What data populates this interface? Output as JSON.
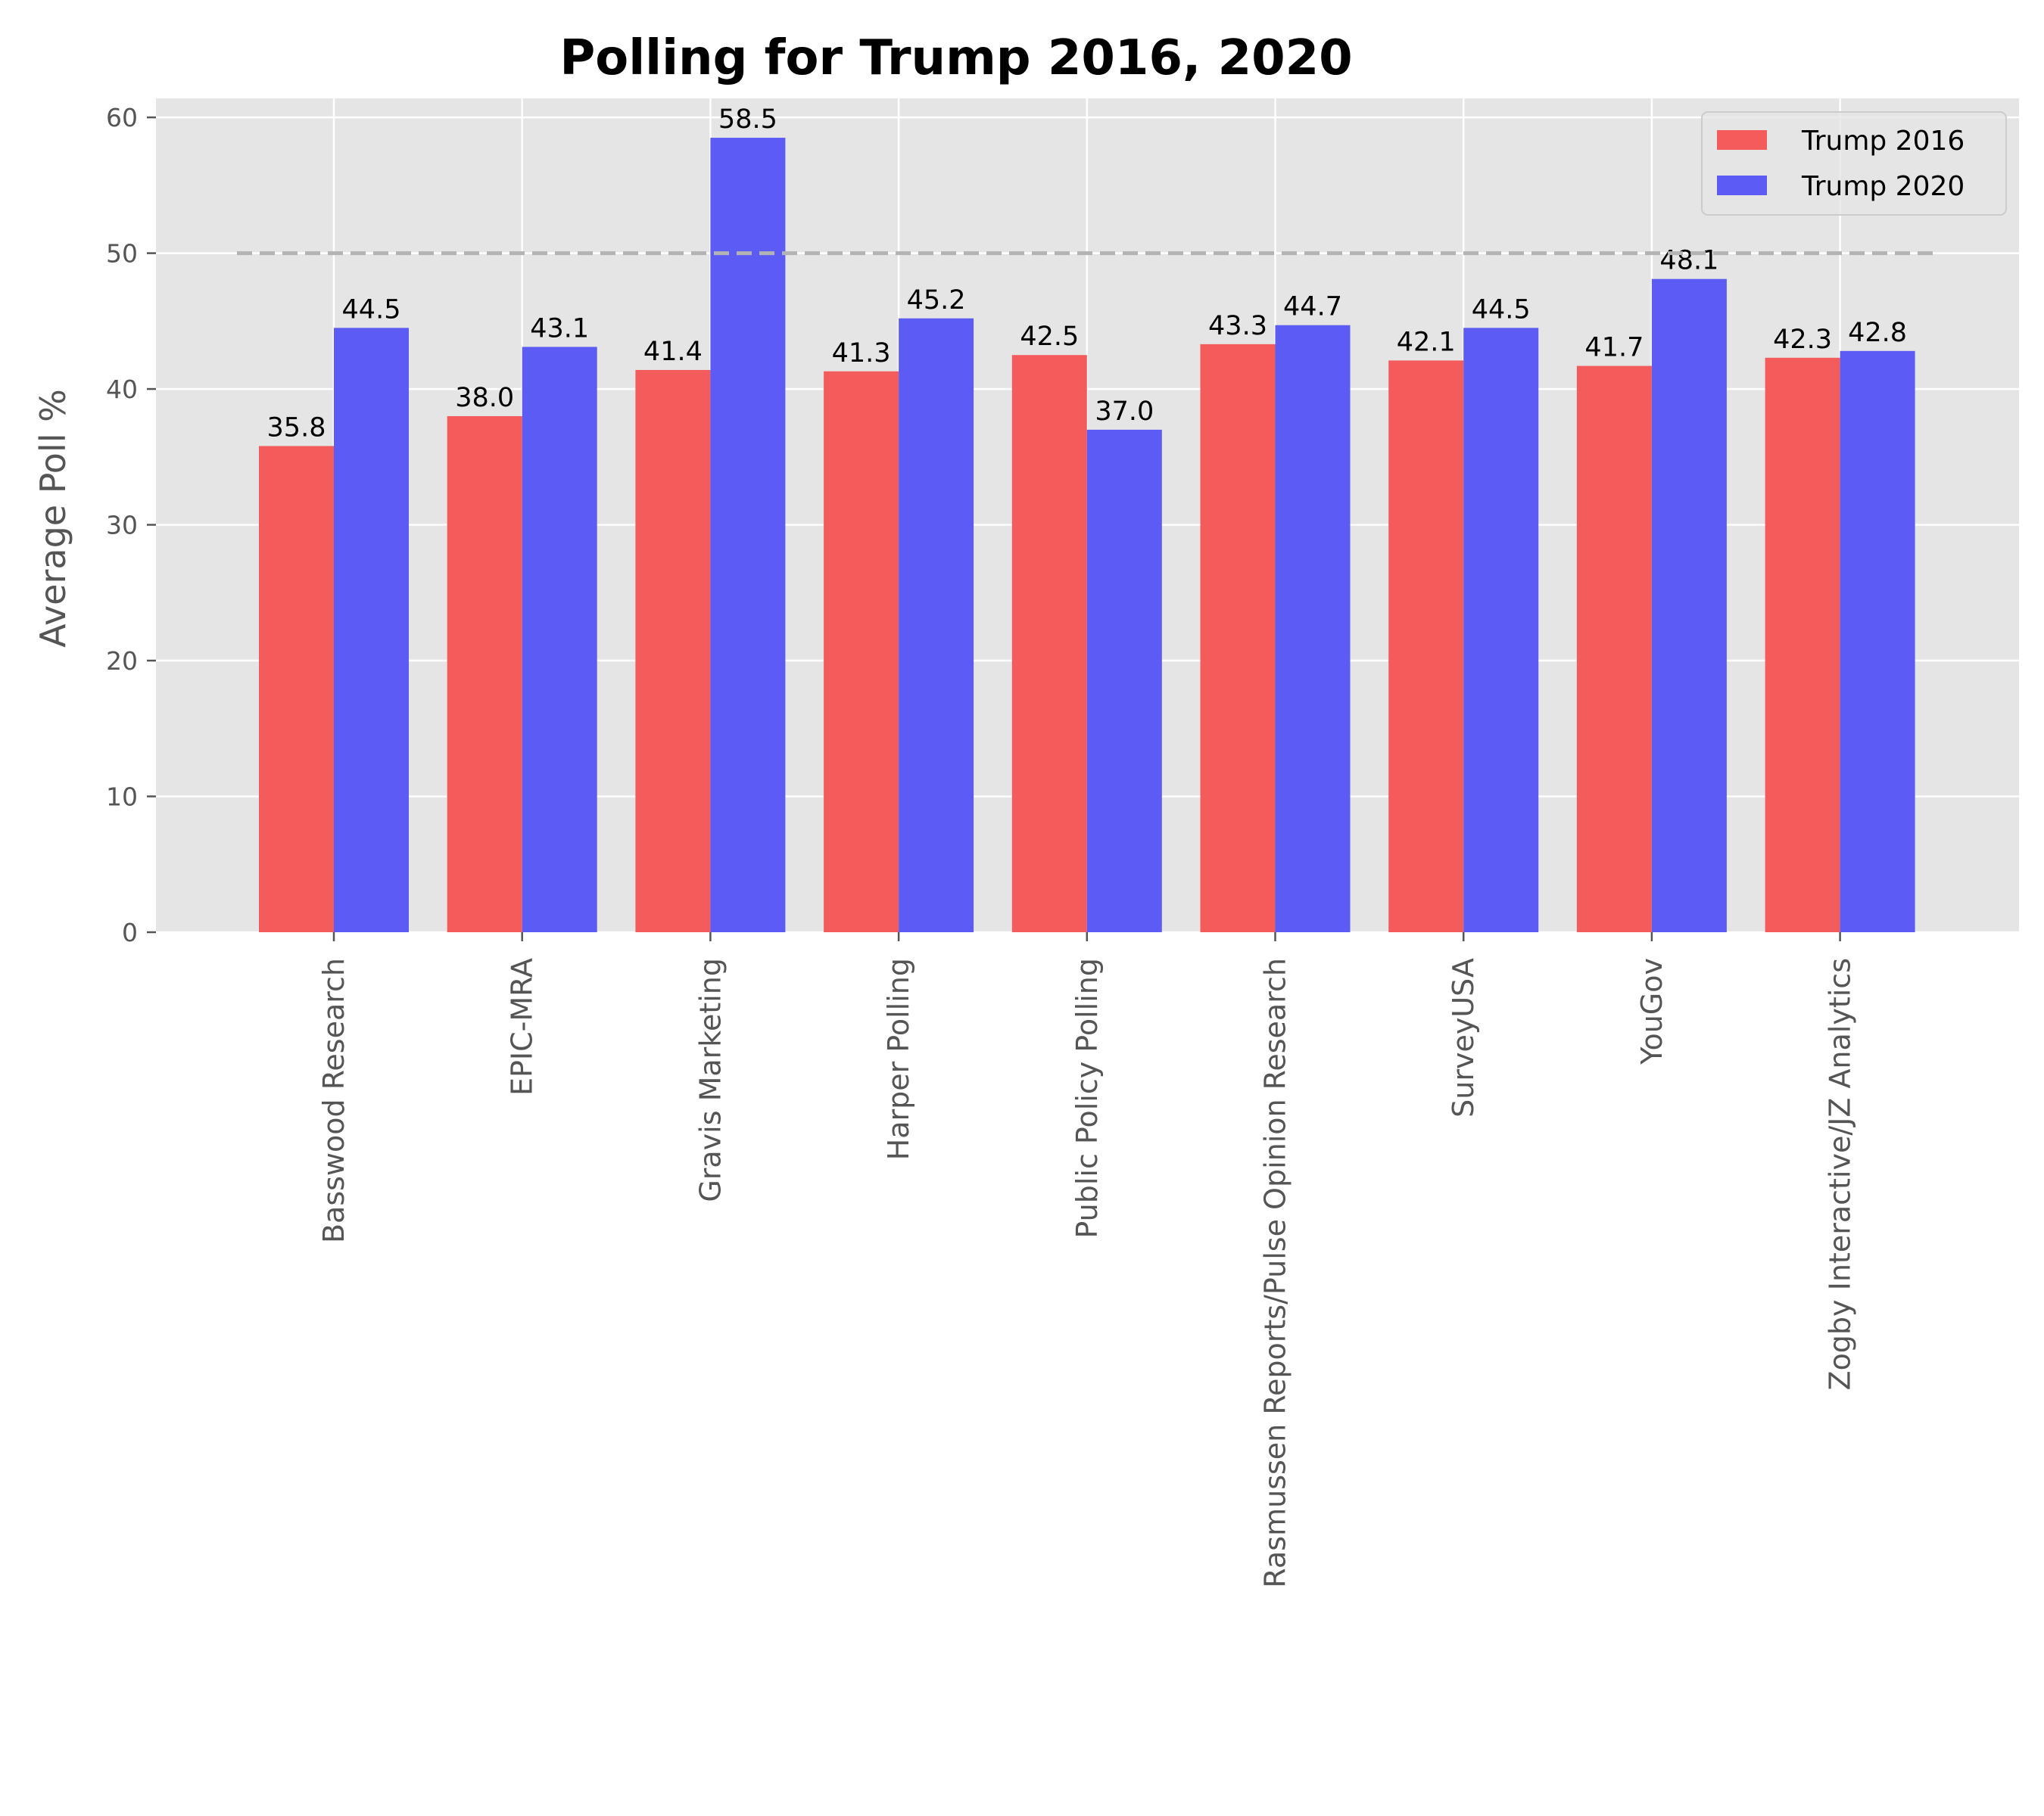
{
  "chart_data": {
    "type": "bar",
    "title": "Polling for Trump 2016, 2020",
    "xlabel": "",
    "ylabel": "Average Poll %",
    "ylim": [
      0,
      61.4
    ],
    "yticks": [
      0,
      10,
      20,
      30,
      40,
      50,
      60
    ],
    "grid": true,
    "legend_position": "top-right",
    "reference_line": {
      "y": 50,
      "style": "dashed",
      "color": "#b3b3b3"
    },
    "categories": [
      "Basswood Research",
      "EPIC-MRA",
      "Gravis Marketing",
      "Harper Polling",
      "Public Policy Polling",
      "Rasmussen Reports/Pulse Opinion Research",
      "SurveyUSA",
      "YouGov",
      "Zogby Interactive/JZ Analytics"
    ],
    "series": [
      {
        "name": "Trump 2016",
        "color": "#f45c5c",
        "values": [
          35.8,
          38.0,
          41.4,
          41.3,
          42.5,
          43.3,
          42.1,
          41.7,
          42.3
        ]
      },
      {
        "name": "Trump 2020",
        "color": "#5c5cf4",
        "values": [
          44.5,
          43.1,
          58.5,
          45.2,
          37.0,
          44.7,
          44.5,
          48.1,
          42.8
        ]
      }
    ]
  }
}
